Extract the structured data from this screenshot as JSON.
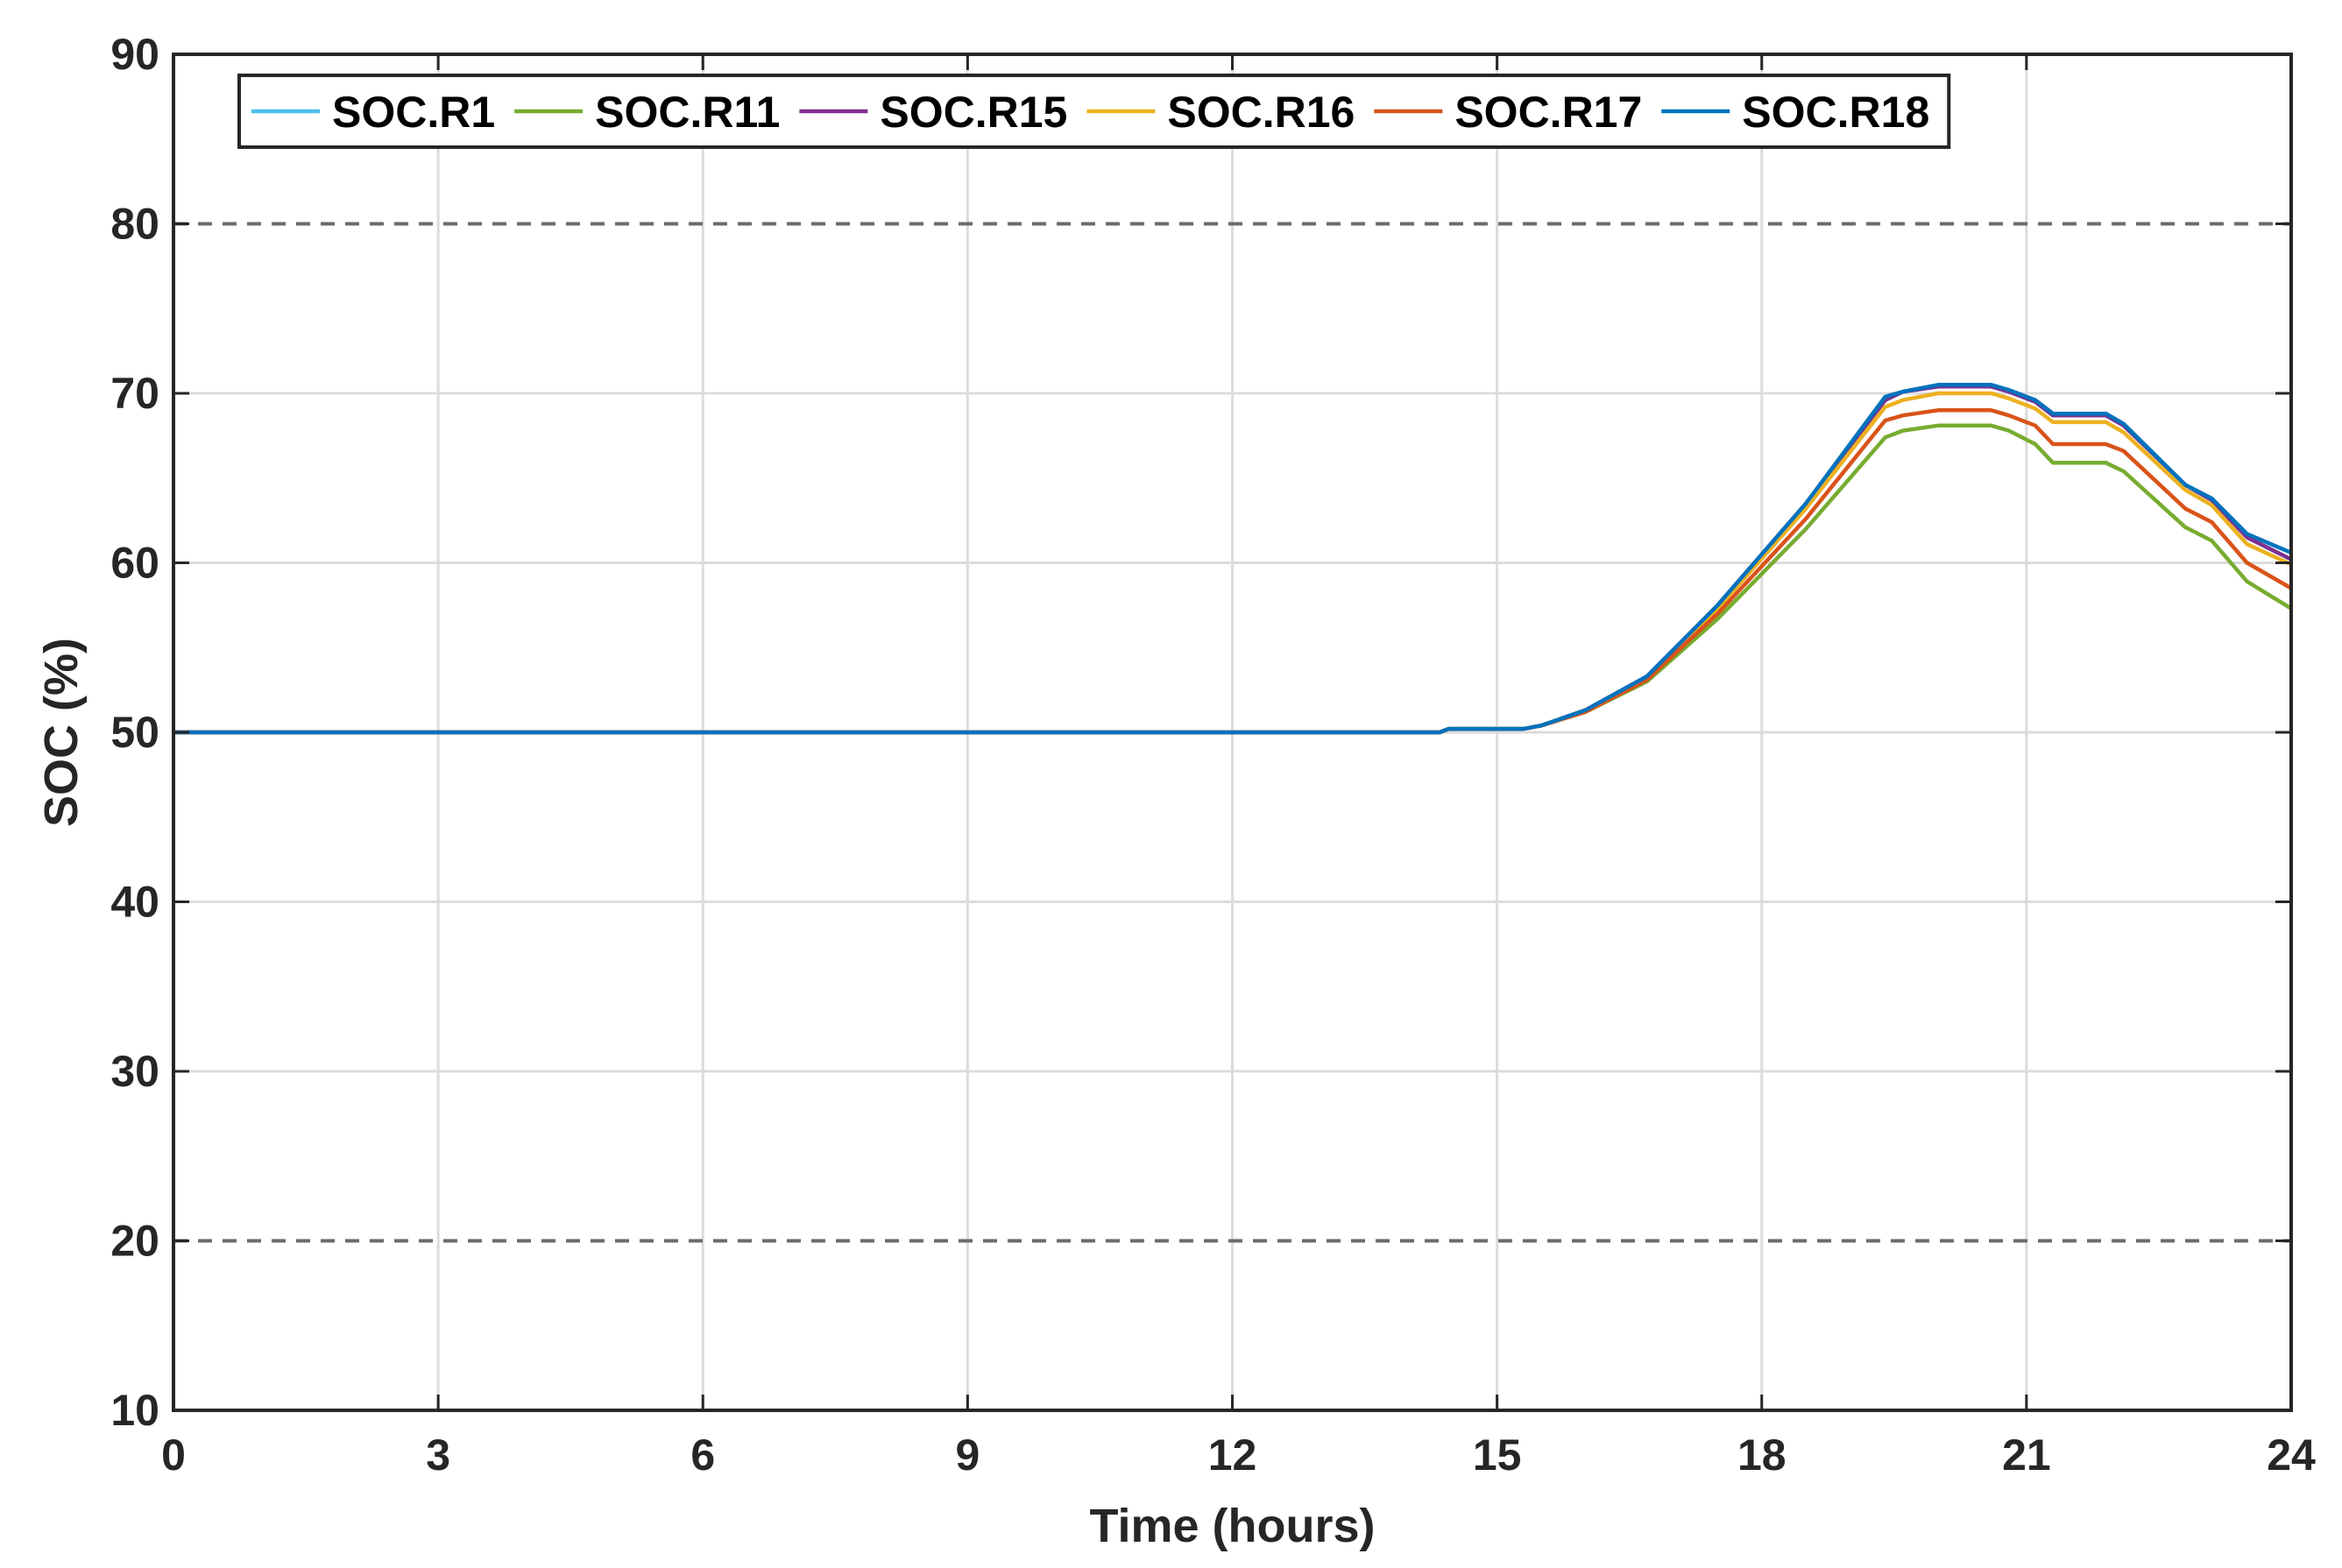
{
  "chart_data": {
    "type": "line",
    "xlabel": "Time (hours)",
    "ylabel": "SOC (%)",
    "xlim": [
      0,
      24
    ],
    "ylim": [
      10,
      90
    ],
    "xticks": [
      0,
      3,
      6,
      9,
      12,
      15,
      18,
      21,
      24
    ],
    "yticks": [
      10,
      20,
      30,
      40,
      50,
      60,
      70,
      80,
      90
    ],
    "grid": true,
    "legend_position": "top",
    "reference_lines": [
      {
        "y": 80,
        "style": "dashed",
        "color": "#6b6b6b"
      },
      {
        "y": 20,
        "style": "dashed",
        "color": "#6b6b6b"
      }
    ],
    "series": [
      {
        "name": "SOC.R1",
        "color": "#4DBEEE",
        "x": [
          0,
          14.35,
          14.45,
          15.3,
          15.5,
          16.0,
          16.7,
          17.5,
          18.5,
          19.4,
          19.6,
          20.0,
          20.6,
          20.8,
          21.1,
          21.3,
          21.9,
          22.1,
          22.8,
          23.1,
          23.5,
          24.0
        ],
        "y": [
          50,
          50,
          50.2,
          50.2,
          50.4,
          51.3,
          53.3,
          57.5,
          63.5,
          69.6,
          70.1,
          70.4,
          70.4,
          70.1,
          69.5,
          68.7,
          68.7,
          68.1,
          64.6,
          63.7,
          61.5,
          60.2
        ]
      },
      {
        "name": "SOC.R11",
        "color": "#77AC30",
        "x": [
          0,
          14.35,
          14.45,
          15.3,
          15.5,
          16.0,
          16.7,
          17.5,
          18.5,
          19.4,
          19.6,
          20.0,
          20.6,
          20.8,
          21.1,
          21.3,
          21.9,
          22.1,
          22.8,
          23.1,
          23.5,
          24.0
        ],
        "y": [
          50,
          50,
          50.2,
          50.2,
          50.4,
          51.2,
          53.0,
          56.7,
          62.0,
          67.4,
          67.8,
          68.1,
          68.1,
          67.8,
          67.0,
          65.9,
          65.9,
          65.4,
          62.1,
          61.3,
          58.9,
          57.3
        ]
      },
      {
        "name": "SOC.R15",
        "color": "#7E2F8E",
        "x": [
          0,
          14.35,
          14.45,
          15.3,
          15.5,
          16.0,
          16.7,
          17.5,
          18.5,
          19.4,
          19.6,
          20.0,
          20.6,
          20.8,
          21.1,
          21.3,
          21.9,
          22.1,
          22.8,
          23.1,
          23.5,
          24.0
        ],
        "y": [
          50,
          50,
          50.2,
          50.2,
          50.4,
          51.3,
          53.3,
          57.5,
          63.5,
          69.6,
          70.1,
          70.4,
          70.4,
          70.1,
          69.5,
          68.7,
          68.7,
          68.1,
          64.6,
          63.7,
          61.5,
          60.2
        ]
      },
      {
        "name": "SOC.R16",
        "color": "#EDB120",
        "x": [
          0,
          14.35,
          14.45,
          15.3,
          15.5,
          16.0,
          16.7,
          17.5,
          18.5,
          19.4,
          19.6,
          20.0,
          20.6,
          20.8,
          21.1,
          21.3,
          21.9,
          22.1,
          22.8,
          23.1,
          23.5,
          24.0
        ],
        "y": [
          50,
          50,
          50.2,
          50.2,
          50.4,
          51.3,
          53.2,
          57.3,
          63.2,
          69.2,
          69.6,
          70.0,
          70.0,
          69.7,
          69.1,
          68.3,
          68.3,
          67.7,
          64.3,
          63.4,
          61.1,
          59.9
        ]
      },
      {
        "name": "SOC.R17",
        "color": "#D95319",
        "x": [
          0,
          14.35,
          14.45,
          15.3,
          15.5,
          16.0,
          16.7,
          17.5,
          18.5,
          19.4,
          19.6,
          20.0,
          20.6,
          20.8,
          21.1,
          21.3,
          21.9,
          22.1,
          22.8,
          23.1,
          23.5,
          24.0
        ],
        "y": [
          50,
          50,
          50.2,
          50.2,
          50.4,
          51.2,
          53.1,
          57.0,
          62.6,
          68.4,
          68.7,
          69.0,
          69.0,
          68.7,
          68.1,
          67.0,
          67.0,
          66.6,
          63.2,
          62.4,
          60.0,
          58.5
        ]
      },
      {
        "name": "SOC.R18",
        "color": "#0072BD",
        "x": [
          0,
          14.35,
          14.45,
          15.3,
          15.5,
          16.0,
          16.7,
          17.5,
          18.5,
          19.4,
          19.6,
          20.0,
          20.6,
          20.8,
          21.1,
          21.3,
          21.9,
          22.1,
          22.8,
          23.1,
          23.5,
          24.0
        ],
        "y": [
          50,
          50,
          50.2,
          50.2,
          50.4,
          51.3,
          53.3,
          57.5,
          63.5,
          69.8,
          70.1,
          70.5,
          70.5,
          70.2,
          69.6,
          68.8,
          68.8,
          68.2,
          64.6,
          63.8,
          61.7,
          60.6
        ]
      }
    ]
  }
}
